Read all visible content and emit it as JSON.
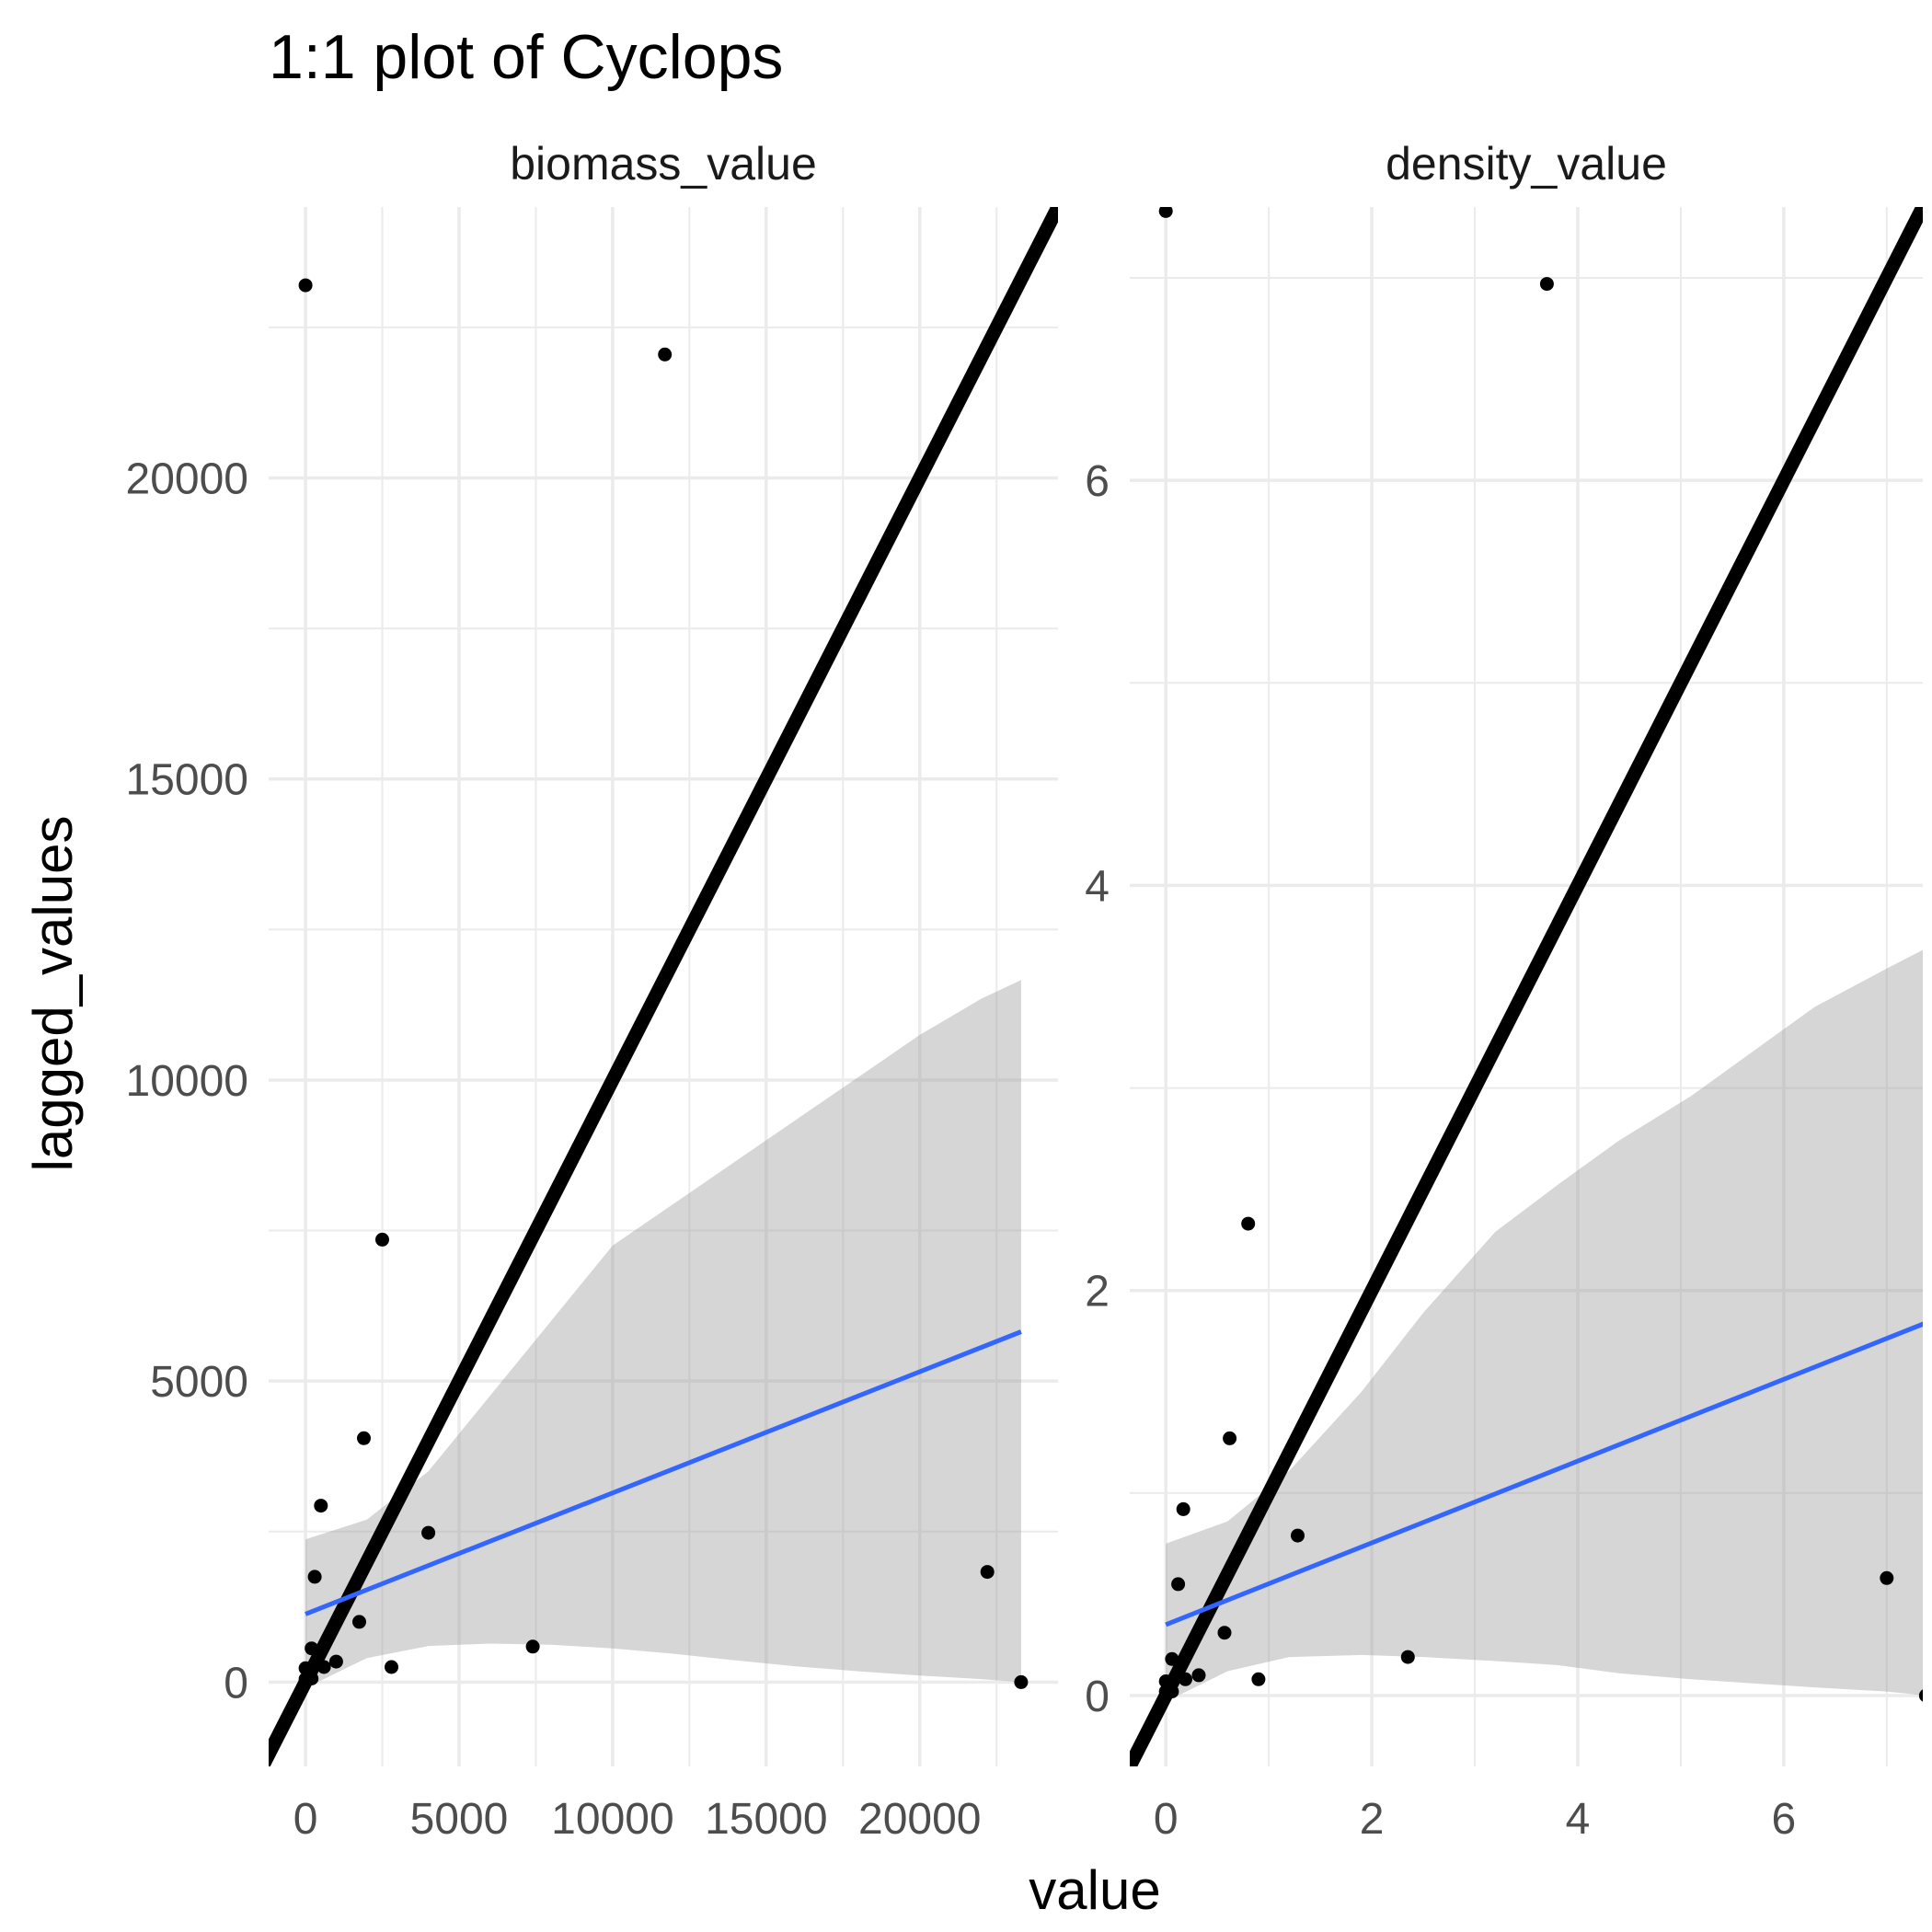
{
  "chart_data": {
    "type": "scatter",
    "title": "1:1 plot of Cyclops",
    "xlabel": "value",
    "ylabel": "lagged_values",
    "grid": true,
    "colors": {
      "points": "#000000",
      "identity_line": "#000000",
      "smooth_line": "#3366FF",
      "confidence_band": "#999999",
      "grid": "#EBEBEB",
      "tick_text": "#4D4D4D"
    },
    "facets": [
      {
        "strip_label": "biomass_value",
        "xlim": [
          -1200,
          24500
        ],
        "ylim": [
          -1400,
          24500
        ],
        "x_ticks": [
          0,
          5000,
          10000,
          15000,
          20000
        ],
        "x_tick_labels": [
          "0",
          "5000",
          "10000",
          "15000",
          "20000"
        ],
        "y_ticks": [
          0,
          5000,
          10000,
          15000,
          20000
        ],
        "y_tick_labels": [
          "0",
          "5000",
          "10000",
          "15000",
          "20000"
        ],
        "points": [
          {
            "x": 0,
            "y": 23200
          },
          {
            "x": 11700,
            "y": 22050
          },
          {
            "x": 2500,
            "y": 7350
          },
          {
            "x": 1900,
            "y": 4050
          },
          {
            "x": 500,
            "y": 2930
          },
          {
            "x": 4000,
            "y": 2480
          },
          {
            "x": 300,
            "y": 1750
          },
          {
            "x": 22200,
            "y": 1830
          },
          {
            "x": 1750,
            "y": 1000
          },
          {
            "x": 7400,
            "y": 590
          },
          {
            "x": 200,
            "y": 560
          },
          {
            "x": 1000,
            "y": 340
          },
          {
            "x": 2800,
            "y": 250
          },
          {
            "x": 0,
            "y": 230
          },
          {
            "x": 100,
            "y": 150
          },
          {
            "x": 600,
            "y": 250
          },
          {
            "x": 0,
            "y": 50
          },
          {
            "x": 200,
            "y": 60
          },
          {
            "x": 23300,
            "y": 0
          }
        ],
        "smooth_line": {
          "x": [
            0,
            23300
          ],
          "y": [
            1130,
            5820
          ]
        },
        "confidence_band": {
          "x": [
            0,
            2000,
            4000,
            6000,
            8000,
            10000,
            12000,
            14000,
            16000,
            18000,
            20000,
            22000,
            23300
          ],
          "lower": [
            -100,
            400,
            600,
            640,
            620,
            560,
            470,
            360,
            260,
            180,
            110,
            50,
            0
          ],
          "upper": [
            2370,
            2700,
            3500,
            4750,
            6000,
            7250,
            7950,
            8650,
            9350,
            10050,
            10750,
            11350,
            11660
          ]
        }
      },
      {
        "strip_label": "density_value",
        "xlim": [
          -0.35,
          7.35
        ],
        "ylim": [
          -0.35,
          7.35
        ],
        "x_ticks": [
          0,
          2,
          4,
          6
        ],
        "x_tick_labels": [
          "0",
          "2",
          "4",
          "6"
        ],
        "y_ticks": [
          0,
          2,
          4,
          6
        ],
        "y_tick_labels": [
          "0",
          "2",
          "4",
          "6"
        ],
        "points": [
          {
            "x": 0,
            "y": 7.33
          },
          {
            "x": 3.7,
            "y": 6.97
          },
          {
            "x": 0.8,
            "y": 2.33
          },
          {
            "x": 0.62,
            "y": 1.27
          },
          {
            "x": 0.17,
            "y": 0.92
          },
          {
            "x": 1.28,
            "y": 0.79
          },
          {
            "x": 0.12,
            "y": 0.55
          },
          {
            "x": 7.0,
            "y": 0.58
          },
          {
            "x": 0.57,
            "y": 0.31
          },
          {
            "x": 2.35,
            "y": 0.19
          },
          {
            "x": 0.06,
            "y": 0.18
          },
          {
            "x": 0.32,
            "y": 0.1
          },
          {
            "x": 0.9,
            "y": 0.08
          },
          {
            "x": 0.0,
            "y": 0.07
          },
          {
            "x": 0.03,
            "y": 0.05
          },
          {
            "x": 0.19,
            "y": 0.08
          },
          {
            "x": 0.0,
            "y": 0.02
          },
          {
            "x": 0.06,
            "y": 0.02
          },
          {
            "x": 7.38,
            "y": 0.0
          }
        ],
        "smooth_line": {
          "x": [
            0,
            7.38
          ],
          "y": [
            0.35,
            1.84
          ]
        },
        "confidence_band": {
          "x": [
            0,
            0.6,
            1.2,
            1.9,
            2.5,
            3.2,
            3.8,
            4.4,
            5.1,
            5.7,
            6.3,
            7.0,
            7.38
          ],
          "lower": [
            -0.03,
            0.12,
            0.19,
            0.2,
            0.19,
            0.17,
            0.15,
            0.11,
            0.08,
            0.06,
            0.04,
            0.02,
            0.0
          ],
          "upper": [
            0.75,
            0.86,
            1.11,
            1.5,
            1.89,
            2.29,
            2.52,
            2.74,
            2.96,
            3.18,
            3.4,
            3.59,
            3.69
          ]
        }
      }
    ]
  }
}
